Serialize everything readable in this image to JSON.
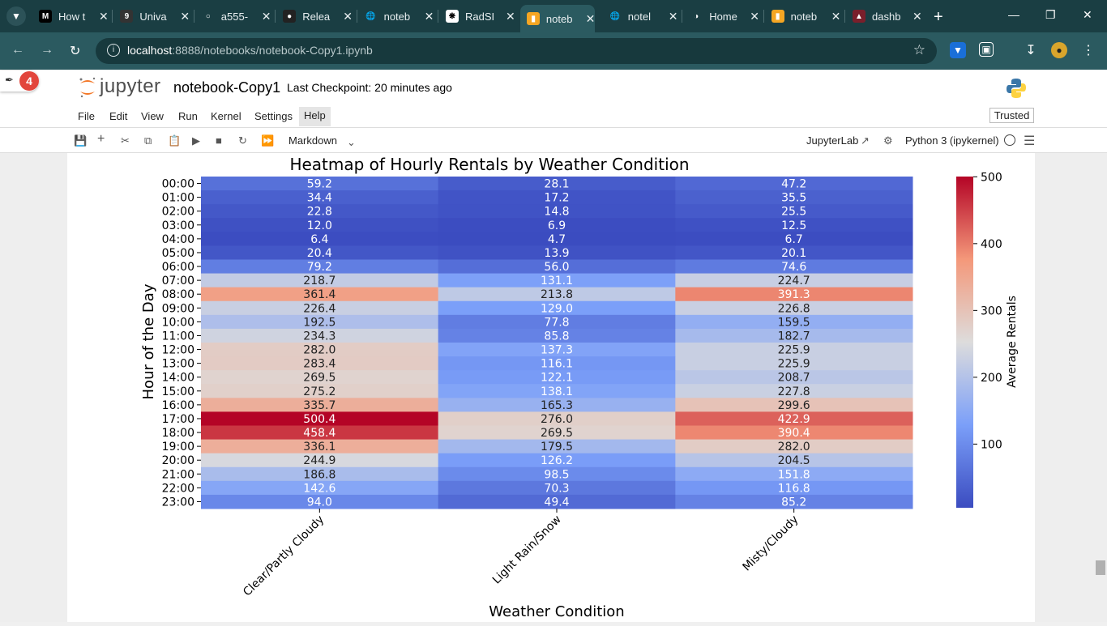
{
  "browser": {
    "tabs": [
      {
        "label": "How t",
        "icon": "medium-icon"
      },
      {
        "label": "Univa",
        "icon": "g-icon"
      },
      {
        "label": "a555-",
        "icon": "loading-icon"
      },
      {
        "label": "Relea",
        "icon": "github-icon"
      },
      {
        "label": "noteb",
        "icon": "globe-icon"
      },
      {
        "label": "RadSI",
        "icon": "openai-icon"
      },
      {
        "label": "noteb",
        "icon": "notebook-icon"
      },
      {
        "label": "notel",
        "icon": "globe-icon"
      },
      {
        "label": "Home",
        "icon": "jupyter-icon"
      },
      {
        "label": "noteb",
        "icon": "notebook-icon"
      },
      {
        "label": "dashb",
        "icon": "dashboard-icon"
      }
    ],
    "active_tab_index": 6,
    "url_host": "localhost",
    "url_rest": ":8888/notebooks/notebook-Copy1.ipynb"
  },
  "jupyter": {
    "badge_count": "4",
    "logo_text": "jupyter",
    "notebook_title": "notebook-Copy1",
    "checkpoint": "Last Checkpoint: 20 minutes ago",
    "menu": [
      "File",
      "Edit",
      "View",
      "Run",
      "Kernel",
      "Settings",
      "Help"
    ],
    "trusted": "Trusted",
    "cell_type": "Markdown",
    "jupyterlab_link": "JupyterLab",
    "kernel_name": "Python 3 (ipykernel)"
  },
  "chart_data": {
    "type": "heatmap",
    "title": "Heatmap of Hourly Rentals by Weather Condition",
    "xlabel": "Weather Condition",
    "ylabel": "Hour of the Day",
    "colorbar_label": "Average Rentals",
    "colormap": "coolwarm",
    "colorbar_range": [
      4.7,
      500.4
    ],
    "colorbar_ticks": [
      100,
      200,
      300,
      400,
      500
    ],
    "columns": [
      "Clear/Partly Cloudy",
      "Light Rain/Snow",
      "Misty/Cloudy"
    ],
    "rows": [
      "00:00",
      "01:00",
      "02:00",
      "03:00",
      "04:00",
      "05:00",
      "06:00",
      "07:00",
      "08:00",
      "09:00",
      "10:00",
      "11:00",
      "12:00",
      "13:00",
      "14:00",
      "15:00",
      "16:00",
      "17:00",
      "18:00",
      "19:00",
      "20:00",
      "21:00",
      "22:00",
      "23:00"
    ],
    "values": [
      [
        59.2,
        28.1,
        47.2
      ],
      [
        34.4,
        17.2,
        35.5
      ],
      [
        22.8,
        14.8,
        25.5
      ],
      [
        12.0,
        6.9,
        12.5
      ],
      [
        6.4,
        4.7,
        6.7
      ],
      [
        20.4,
        13.9,
        20.1
      ],
      [
        79.2,
        56.0,
        74.6
      ],
      [
        218.7,
        131.1,
        224.7
      ],
      [
        361.4,
        213.8,
        391.3
      ],
      [
        226.4,
        129.0,
        226.8
      ],
      [
        192.5,
        77.8,
        159.5
      ],
      [
        234.3,
        85.8,
        182.7
      ],
      [
        282.0,
        137.3,
        225.9
      ],
      [
        283.4,
        116.1,
        225.9
      ],
      [
        269.5,
        122.1,
        208.7
      ],
      [
        275.2,
        138.1,
        227.8
      ],
      [
        335.7,
        165.3,
        299.6
      ],
      [
        500.4,
        276.0,
        422.9
      ],
      [
        458.4,
        269.5,
        390.4
      ],
      [
        336.1,
        179.5,
        282.0
      ],
      [
        244.9,
        126.2,
        204.5
      ],
      [
        186.8,
        98.5,
        151.8
      ],
      [
        142.6,
        70.3,
        116.8
      ],
      [
        94.0,
        49.4,
        85.2
      ]
    ]
  }
}
